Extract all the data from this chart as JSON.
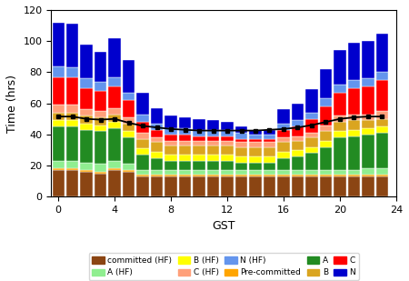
{
  "gst": [
    0,
    1,
    2,
    3,
    4,
    5,
    6,
    7,
    8,
    9,
    10,
    11,
    12,
    13,
    14,
    15,
    16,
    17,
    18,
    19,
    20,
    21,
    22,
    23
  ],
  "committed_hf": [
    17,
    17,
    16,
    15,
    17,
    16,
    13,
    13,
    13,
    13,
    13,
    13,
    13,
    13,
    13,
    13,
    13,
    13,
    13,
    13,
    13,
    13,
    13,
    13
  ],
  "precommitted": [
    1,
    1,
    1,
    1,
    1,
    1,
    1,
    1,
    1,
    1,
    1,
    1,
    1,
    1,
    1,
    1,
    1,
    1,
    1,
    1,
    1,
    1,
    1,
    1
  ],
  "A_hf": [
    5,
    5,
    5,
    5,
    5,
    4,
    3,
    3,
    3,
    3,
    3,
    3,
    3,
    3,
    3,
    3,
    3,
    3,
    3,
    3,
    3,
    3,
    4,
    4
  ],
  "A": [
    22,
    22,
    21,
    21,
    21,
    17,
    10,
    8,
    6,
    6,
    6,
    6,
    6,
    5,
    5,
    5,
    8,
    9,
    11,
    15,
    21,
    22,
    22,
    23
  ],
  "B_hf": [
    4,
    4,
    4,
    4,
    4,
    4,
    4,
    4,
    4,
    4,
    4,
    4,
    4,
    4,
    4,
    4,
    4,
    4,
    4,
    4,
    4,
    4,
    4,
    4
  ],
  "B": [
    5,
    5,
    5,
    5,
    5,
    5,
    6,
    6,
    6,
    6,
    6,
    6,
    6,
    6,
    6,
    6,
    6,
    6,
    6,
    6,
    6,
    6,
    5,
    5
  ],
  "C_hf": [
    5,
    5,
    4,
    4,
    4,
    4,
    4,
    3,
    3,
    3,
    3,
    3,
    3,
    3,
    3,
    3,
    3,
    3,
    3,
    4,
    4,
    4,
    4,
    5
  ],
  "C": [
    18,
    18,
    14,
    13,
    14,
    11,
    7,
    5,
    4,
    4,
    3,
    3,
    3,
    2,
    2,
    2,
    5,
    6,
    9,
    12,
    15,
    17,
    18,
    20
  ],
  "N_hf": [
    7,
    6,
    6,
    6,
    6,
    5,
    5,
    4,
    4,
    4,
    4,
    4,
    4,
    4,
    3,
    3,
    4,
    4,
    4,
    5,
    5,
    5,
    5,
    5
  ],
  "N": [
    28,
    28,
    22,
    19,
    25,
    21,
    14,
    10,
    8,
    7,
    7,
    6,
    5,
    4,
    3,
    3,
    9,
    11,
    15,
    19,
    22,
    24,
    24,
    25
  ],
  "line": [
    51.5,
    51.5,
    50.0,
    49.5,
    50.0,
    47.5,
    45.5,
    44.5,
    43.5,
    43.0,
    42.5,
    42.5,
    42.5,
    42.5,
    42.5,
    43.0,
    43.5,
    44.5,
    46.0,
    48.0,
    50.0,
    51.0,
    51.5,
    51.5
  ],
  "colors": {
    "committed_hf": "#8B4513",
    "precommitted": "#FFA500",
    "A_hf": "#90EE90",
    "A": "#228B22",
    "B_hf": "#FFFF00",
    "B": "#DAA520",
    "C_hf": "#FFA07A",
    "C": "#FF0000",
    "N_hf": "#6495ED",
    "N": "#0000CD"
  },
  "xlabel": "GST",
  "ylabel": "Time (hrs)",
  "ylim": [
    0,
    120
  ],
  "xlim": [
    -0.5,
    23.5
  ]
}
